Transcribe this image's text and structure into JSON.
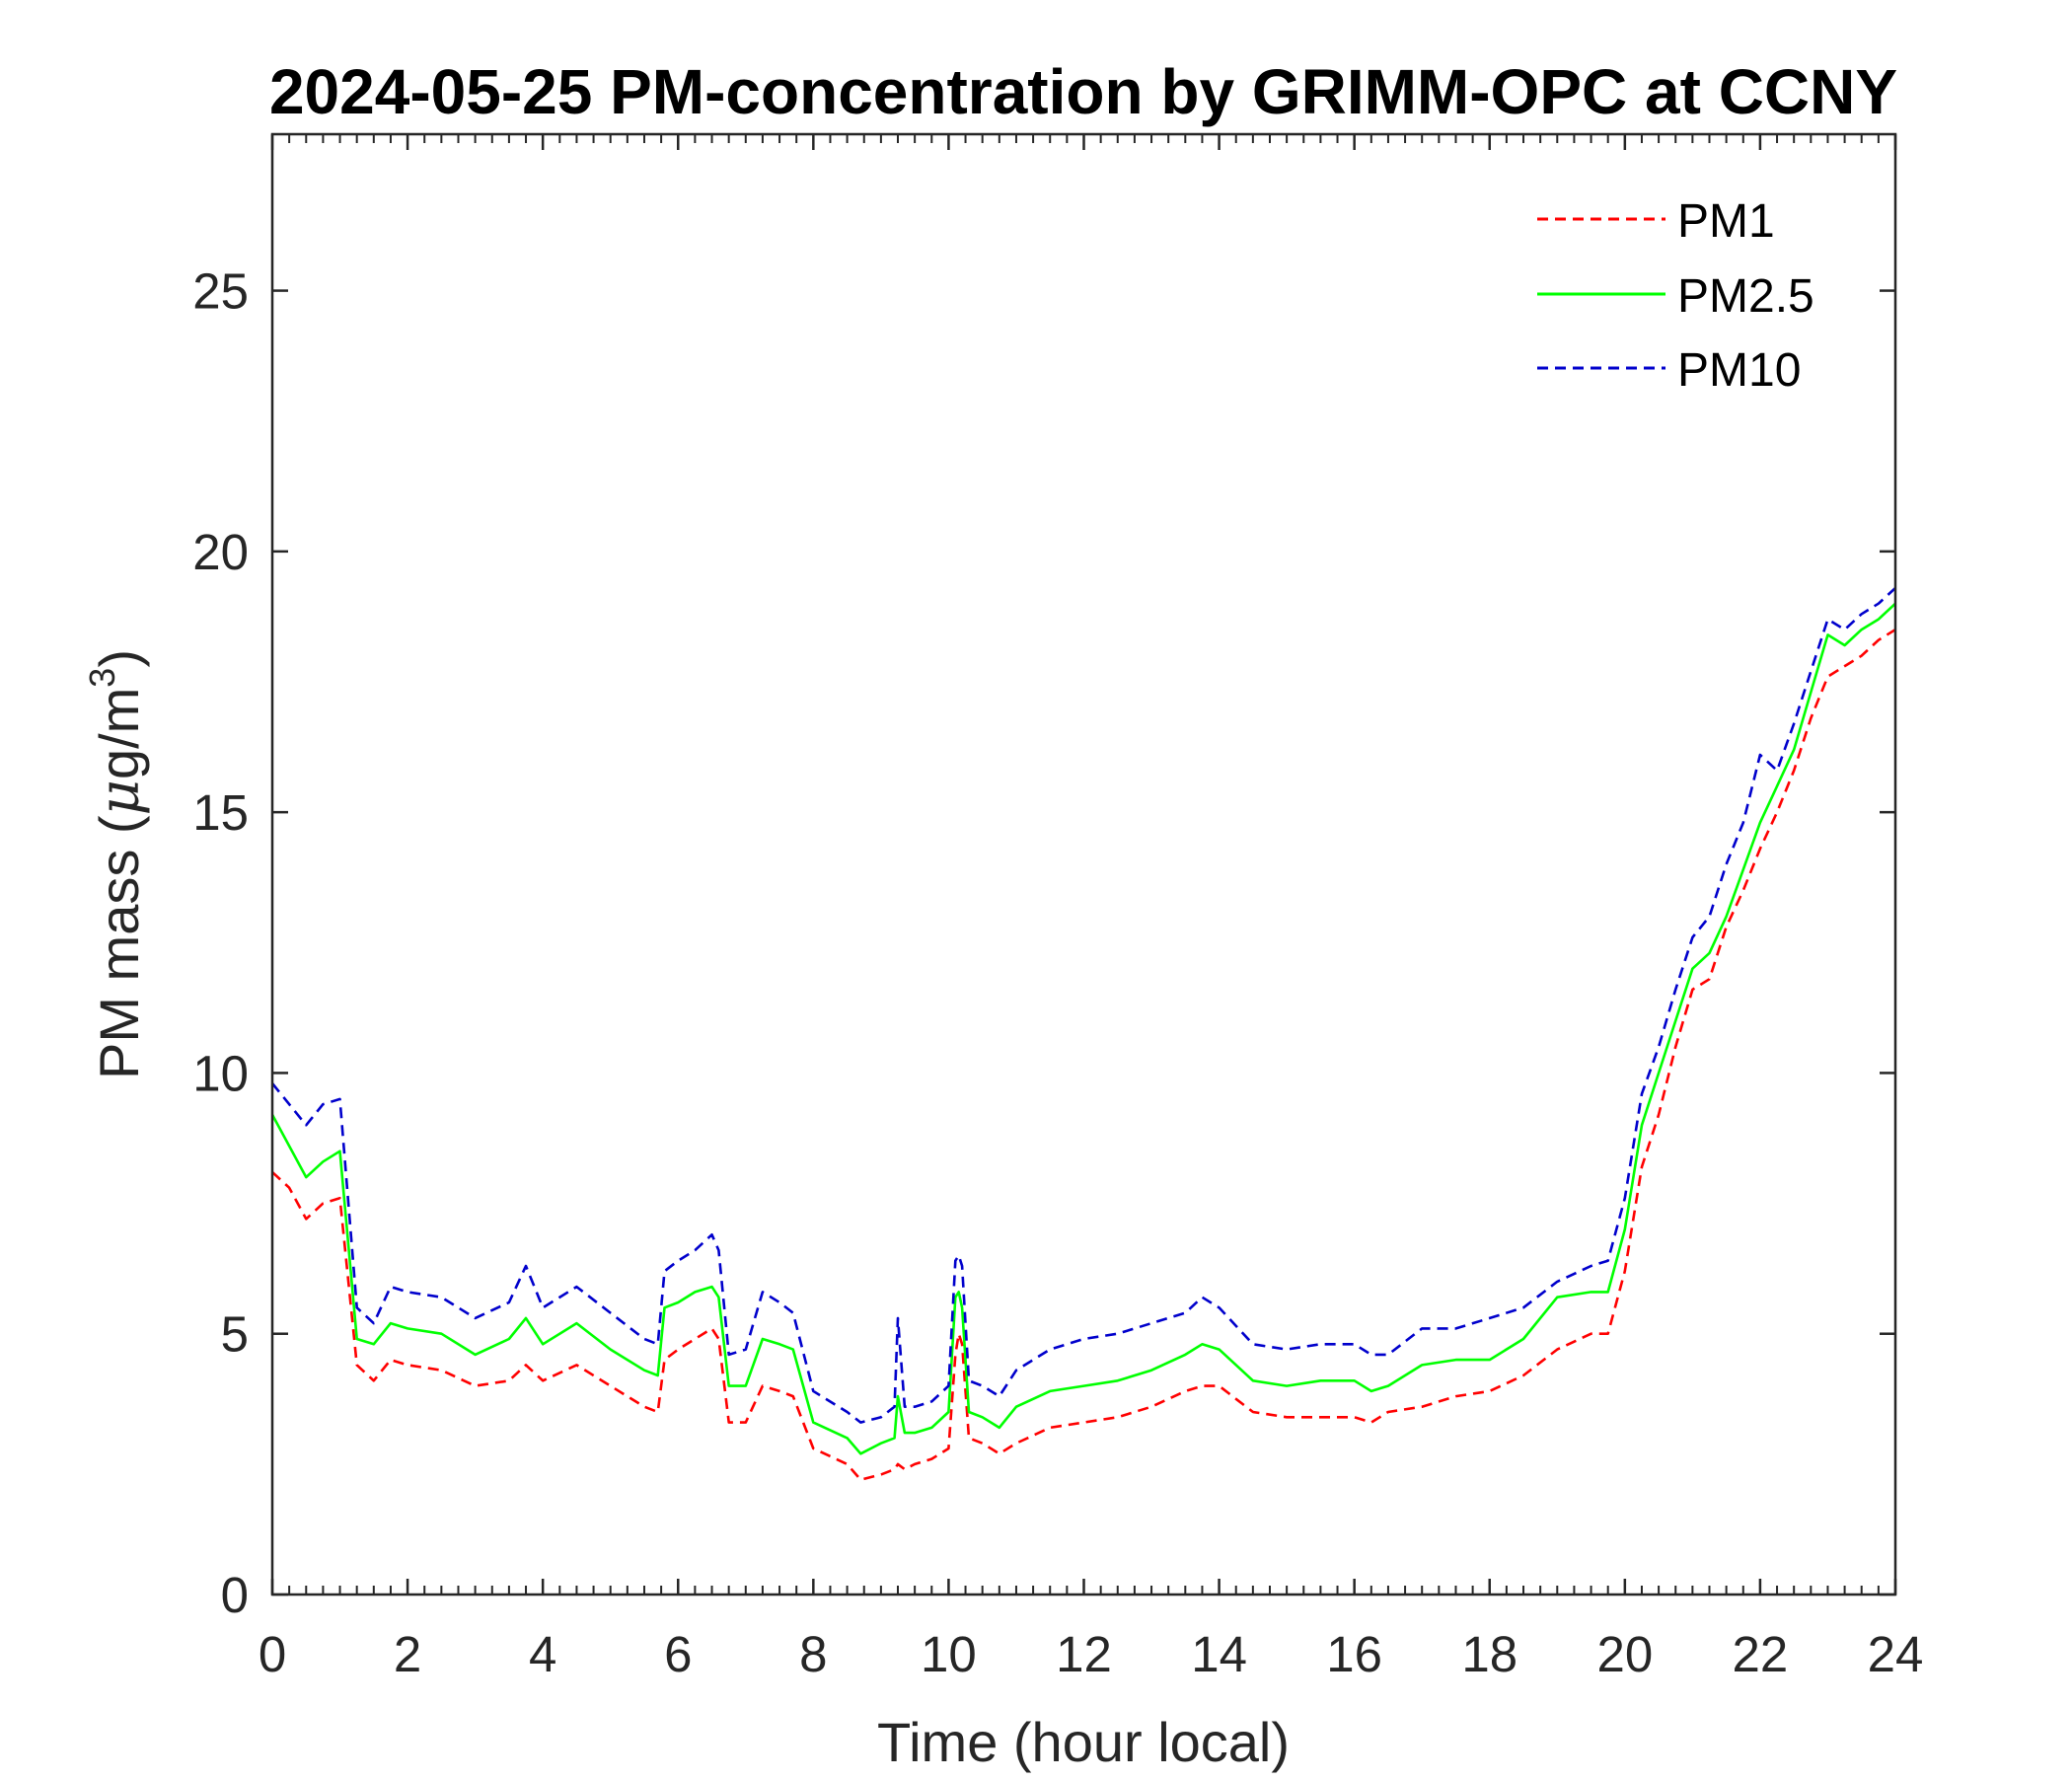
{
  "chart_data": {
    "type": "line",
    "title": "2024-05-25 PM-concentration by GRIMM-OPC at CCNY",
    "xlabel": "Time (hour local)",
    "ylabel_main": "PM mass (",
    "ylabel_mu": "μ",
    "ylabel_unit": "g/m",
    "ylabel_sup": "3",
    "ylabel_close": ")",
    "xlim": [
      0,
      24
    ],
    "ylim": [
      0,
      28
    ],
    "x_ticks": [
      "0",
      "2",
      "4",
      "6",
      "8",
      "10",
      "12",
      "14",
      "16",
      "18",
      "20",
      "22",
      "24"
    ],
    "y_ticks": [
      "0",
      "5",
      "10",
      "15",
      "20",
      "25"
    ],
    "grid": false,
    "legend_position": "top-right",
    "x": [
      0,
      0.25,
      0.5,
      0.75,
      1.0,
      1.25,
      1.5,
      1.75,
      2.0,
      2.5,
      3.0,
      3.5,
      3.75,
      4.0,
      4.5,
      5.0,
      5.5,
      5.7,
      5.8,
      6.0,
      6.25,
      6.5,
      6.6,
      6.75,
      7.0,
      7.25,
      7.5,
      7.7,
      8.0,
      8.5,
      8.7,
      9.0,
      9.2,
      9.25,
      9.35,
      9.5,
      9.75,
      10.0,
      10.1,
      10.15,
      10.2,
      10.3,
      10.5,
      10.75,
      11.0,
      11.5,
      12.0,
      12.5,
      13.0,
      13.5,
      13.75,
      14.0,
      14.5,
      15.0,
      15.5,
      16.0,
      16.25,
      16.5,
      17.0,
      17.5,
      18.0,
      18.5,
      19.0,
      19.5,
      19.75,
      20.0,
      20.25,
      20.5,
      20.75,
      21.0,
      21.25,
      21.5,
      21.75,
      22.0,
      22.25,
      22.5,
      22.75,
      23.0,
      23.25,
      23.5,
      23.75,
      24.0
    ],
    "series": [
      {
        "name": "PM1",
        "color": "#ff0000",
        "style": "dashed",
        "values": [
          8.1,
          7.8,
          7.2,
          7.5,
          7.6,
          4.4,
          4.1,
          4.5,
          4.4,
          4.3,
          4.0,
          4.1,
          4.4,
          4.1,
          4.4,
          4.0,
          3.6,
          3.5,
          4.5,
          4.7,
          4.9,
          5.1,
          4.9,
          3.3,
          3.3,
          4.0,
          3.9,
          3.8,
          2.8,
          2.5,
          2.2,
          2.3,
          2.4,
          2.5,
          2.4,
          2.5,
          2.6,
          2.8,
          4.6,
          5.0,
          4.8,
          3.0,
          2.9,
          2.7,
          2.9,
          3.2,
          3.3,
          3.4,
          3.6,
          3.9,
          4.0,
          4.0,
          3.5,
          3.4,
          3.4,
          3.4,
          3.3,
          3.5,
          3.6,
          3.8,
          3.9,
          4.2,
          4.7,
          5.0,
          5.0,
          6.2,
          8.2,
          9.2,
          10.5,
          11.6,
          11.8,
          12.8,
          13.5,
          14.3,
          15.0,
          15.8,
          16.8,
          17.6,
          17.8,
          18.0,
          18.3,
          18.5
        ]
      },
      {
        "name": "PM2.5",
        "color": "#00ff00",
        "style": "solid",
        "values": [
          9.2,
          8.6,
          8.0,
          8.3,
          8.5,
          4.9,
          4.8,
          5.2,
          5.1,
          5.0,
          4.6,
          4.9,
          5.3,
          4.8,
          5.2,
          4.7,
          4.3,
          4.2,
          5.5,
          5.6,
          5.8,
          5.9,
          5.7,
          4.0,
          4.0,
          4.9,
          4.8,
          4.7,
          3.3,
          3.0,
          2.7,
          2.9,
          3.0,
          3.8,
          3.1,
          3.1,
          3.2,
          3.5,
          5.7,
          5.8,
          5.5,
          3.5,
          3.4,
          3.2,
          3.6,
          3.9,
          4.0,
          4.1,
          4.3,
          4.6,
          4.8,
          4.7,
          4.1,
          4.0,
          4.1,
          4.1,
          3.9,
          4.0,
          4.4,
          4.5,
          4.5,
          4.9,
          5.7,
          5.8,
          5.8,
          7.0,
          9.0,
          10.0,
          11.0,
          12.0,
          12.3,
          13.0,
          13.9,
          14.8,
          15.5,
          16.2,
          17.3,
          18.4,
          18.2,
          18.5,
          18.7,
          19.0
        ]
      },
      {
        "name": "PM10",
        "color": "#0000cc",
        "style": "dashed",
        "values": [
          9.8,
          9.4,
          9.0,
          9.4,
          9.5,
          5.5,
          5.2,
          5.9,
          5.8,
          5.7,
          5.3,
          5.6,
          6.3,
          5.5,
          5.9,
          5.4,
          4.9,
          4.8,
          6.2,
          6.4,
          6.6,
          6.9,
          6.6,
          4.6,
          4.7,
          5.8,
          5.6,
          5.4,
          3.9,
          3.5,
          3.3,
          3.4,
          3.6,
          5.3,
          3.6,
          3.6,
          3.7,
          4.0,
          6.4,
          6.5,
          6.3,
          4.1,
          4.0,
          3.8,
          4.3,
          4.7,
          4.9,
          5.0,
          5.2,
          5.4,
          5.7,
          5.5,
          4.8,
          4.7,
          4.8,
          4.8,
          4.6,
          4.6,
          5.1,
          5.1,
          5.3,
          5.5,
          6.0,
          6.3,
          6.4,
          7.6,
          9.6,
          10.5,
          11.6,
          12.6,
          13.0,
          14.0,
          14.8,
          16.1,
          15.8,
          16.7,
          17.7,
          18.7,
          18.5,
          18.8,
          19.0,
          19.3
        ]
      }
    ]
  }
}
